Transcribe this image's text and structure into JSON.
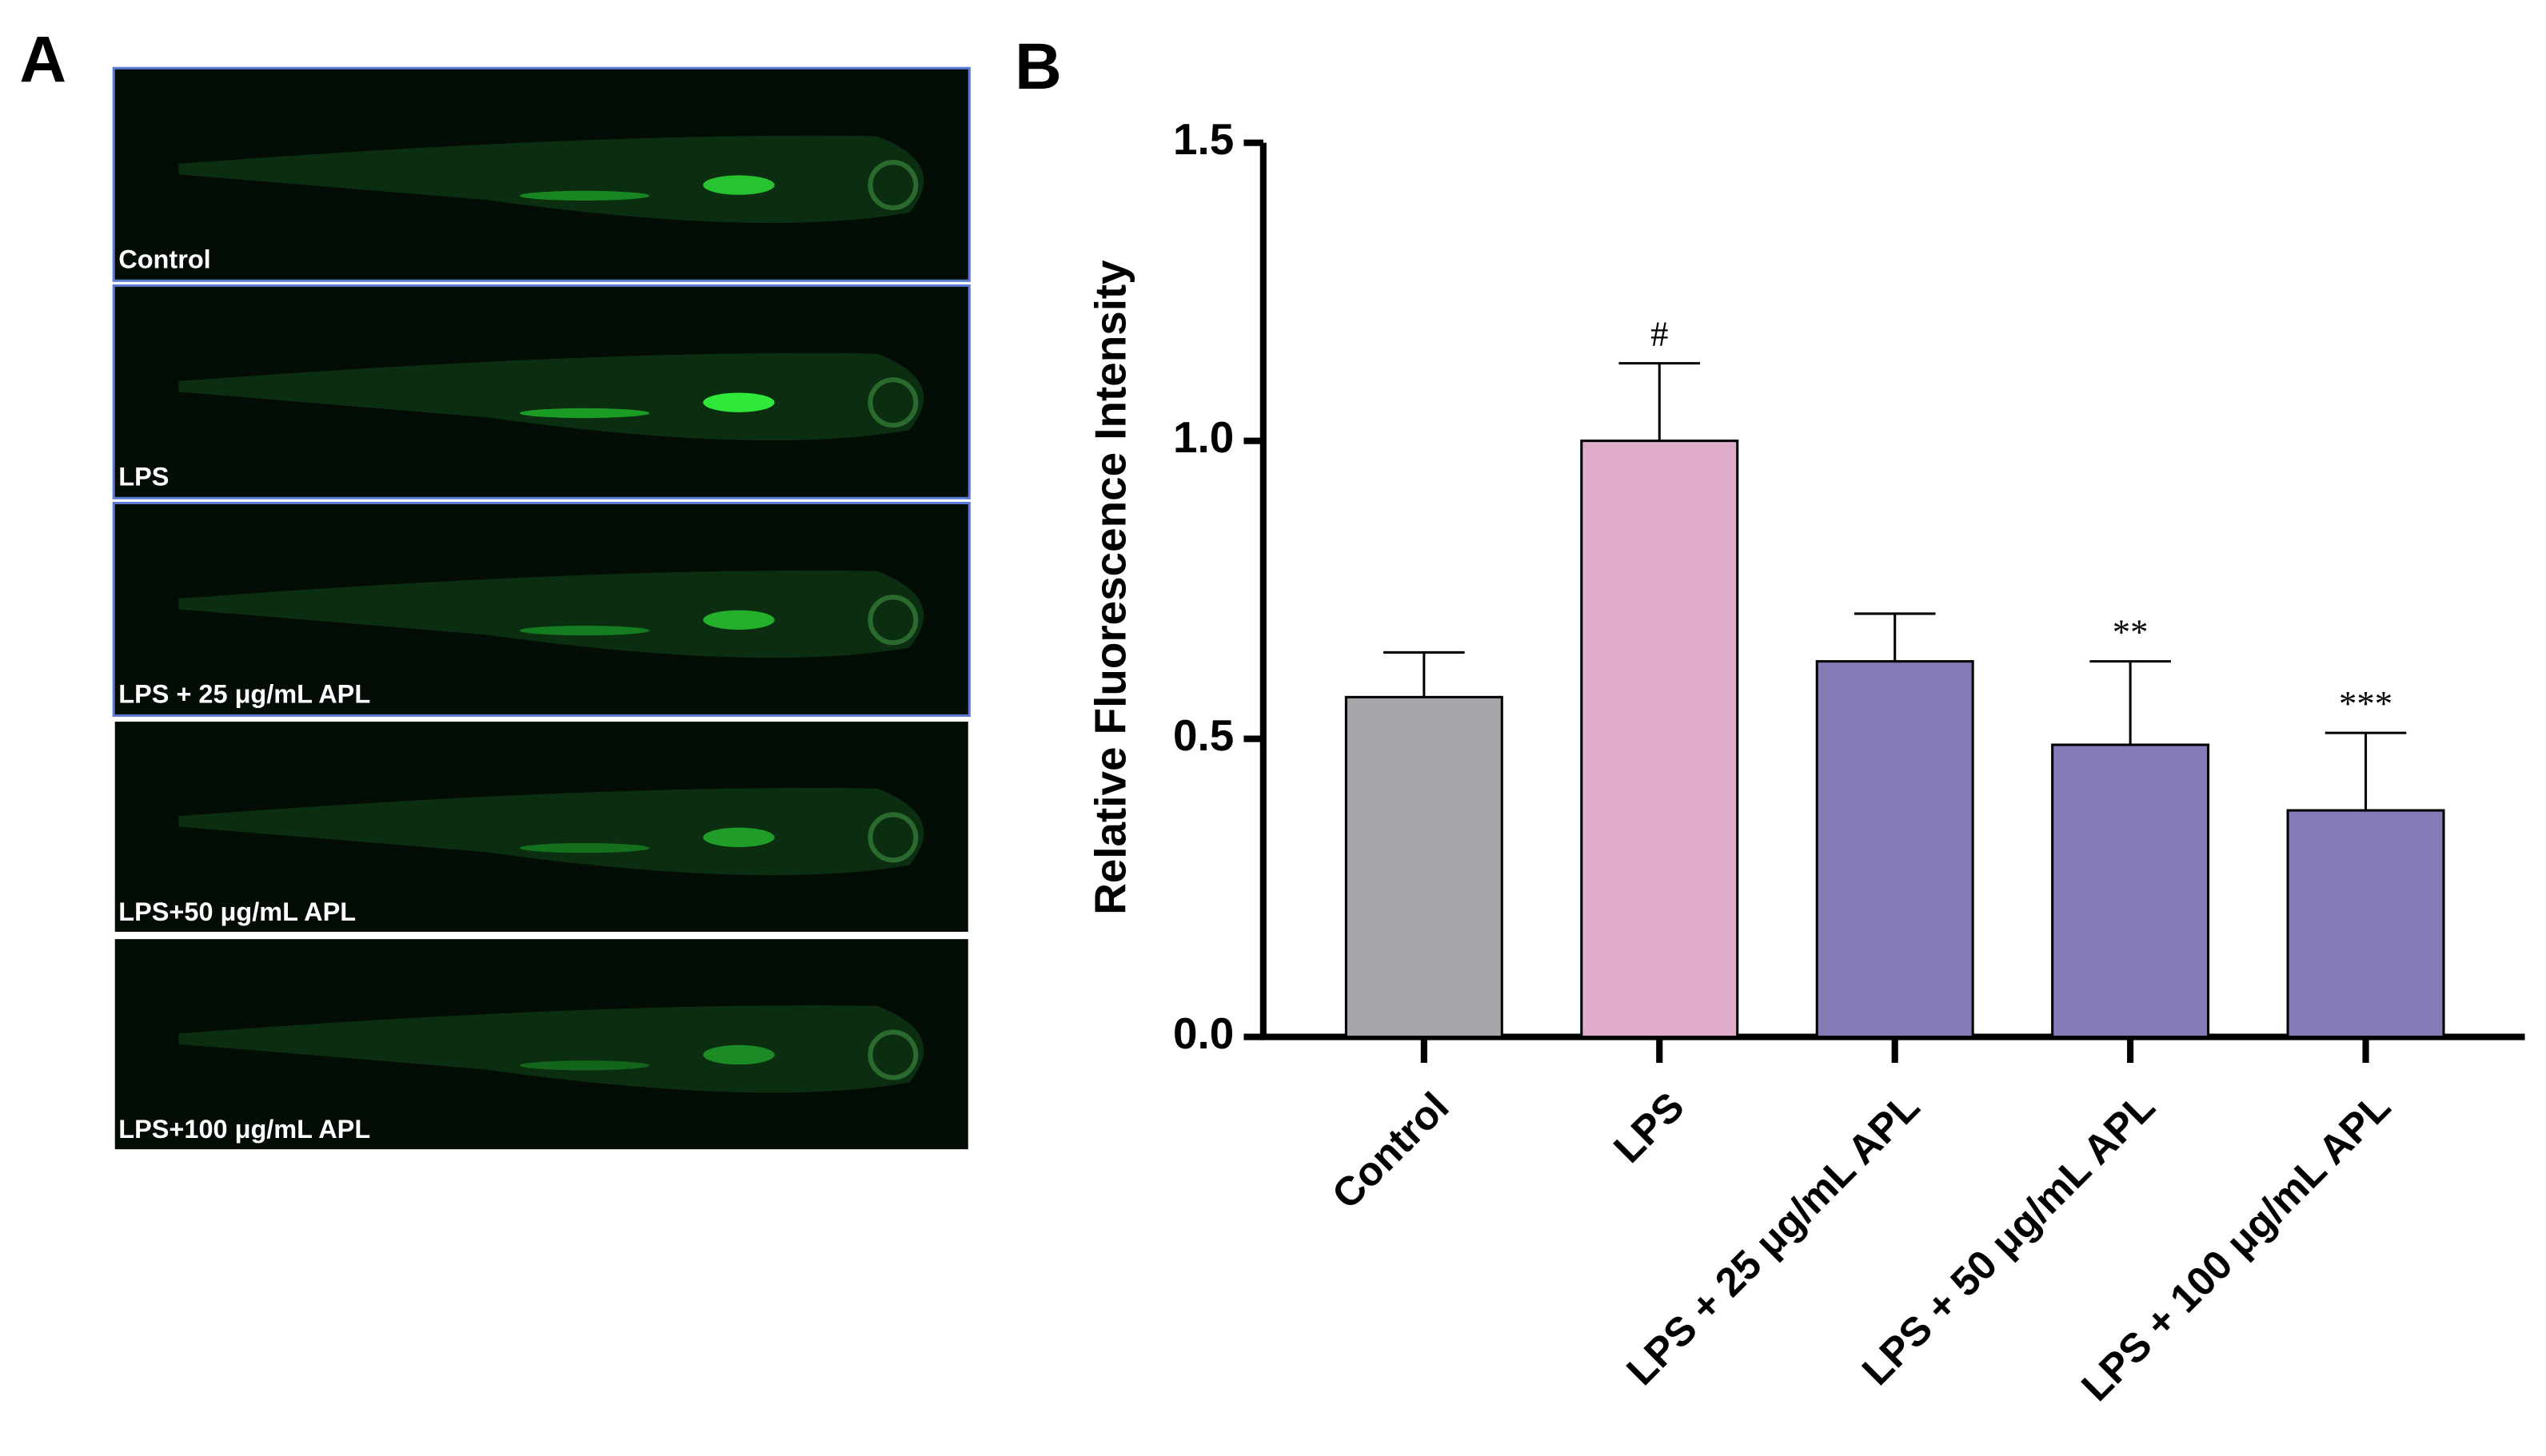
{
  "panel_labels": [
    "A",
    "B"
  ],
  "images": [
    {
      "label": "Control"
    },
    {
      "label": "LPS"
    },
    {
      "label": "LPS + 25 μg/mL APL"
    },
    {
      "label": "LPS+50 μg/mL APL"
    },
    {
      "label": "LPS+100 μg/mL APL"
    }
  ],
  "chart_data": {
    "type": "bar",
    "y_label": "Relative Fluorescence Intensity",
    "categories": [
      "Control",
      "LPS",
      "LPS + 25 μg/mL APL",
      "LPS + 50 μg/mL APL",
      "LPS + 100 μg/mL APL"
    ],
    "values": [
      0.57,
      1.0,
      0.63,
      0.49,
      0.38
    ],
    "errors": [
      0.075,
      0.13,
      0.08,
      0.14,
      0.13
    ],
    "colors": [
      "#a6a5aa",
      "#dfadc9",
      "#847bb7",
      "#847bb7",
      "#847bb7"
    ],
    "annotations": [
      null,
      "#",
      null,
      "**",
      "***"
    ],
    "ylim": [
      0,
      1.5
    ],
    "yticks": [
      {
        "value": 0,
        "label": "0.0"
      },
      {
        "value": 0.5,
        "label": "0.5"
      },
      {
        "value": 1,
        "label": "1.0"
      },
      {
        "value": 1.5,
        "label": "1.5"
      }
    ]
  }
}
